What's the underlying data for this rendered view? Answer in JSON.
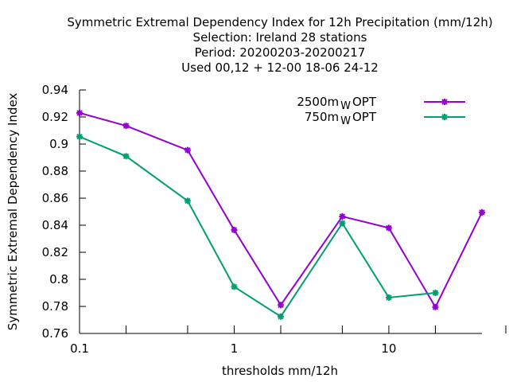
{
  "chart_data": {
    "type": "line",
    "title_lines": [
      "Symmetric Extremal Dependency Index  for 12h Precipitation (mm/12h)",
      "Selection: Ireland     28 stations",
      "Period: 20200203-20200217",
      "Used  00,12  + 12-00 18-06 24-12"
    ],
    "xlabel": "thresholds mm/12h",
    "ylabel": "Symmetric Extremal Dependency Index",
    "x_scale": "log",
    "xlim": [
      0.1,
      40
    ],
    "ylim": [
      0.76,
      0.94
    ],
    "y_ticks": [
      "0.76",
      "0.78",
      "0.8",
      "0.82",
      "0.84",
      "0.86",
      "0.88",
      "0.9",
      "0.92",
      "0.94"
    ],
    "x_tick_labels": [
      {
        "value": 0.1,
        "label": "0.1"
      },
      {
        "value": 1,
        "label": "1"
      },
      {
        "value": 10,
        "label": "10"
      }
    ],
    "x": [
      0.1,
      0.2,
      0.5,
      1,
      2,
      5,
      10,
      20,
      40
    ],
    "grid": false,
    "legend_position": "top-right",
    "series": [
      {
        "name": "2500m",
        "name_sub": "W",
        "name_suffix": "OPT",
        "color": "#9400d3",
        "values": [
          0.923,
          0.9135,
          0.8955,
          0.8365,
          0.781,
          0.8465,
          0.838,
          0.7795,
          0.8495
        ]
      },
      {
        "name": "750m",
        "name_sub": "W",
        "name_suffix": "OPT",
        "color": "#009e73",
        "values": [
          0.9055,
          0.891,
          0.858,
          0.7945,
          0.7725,
          0.8415,
          0.7865,
          0.79,
          null
        ]
      }
    ]
  }
}
